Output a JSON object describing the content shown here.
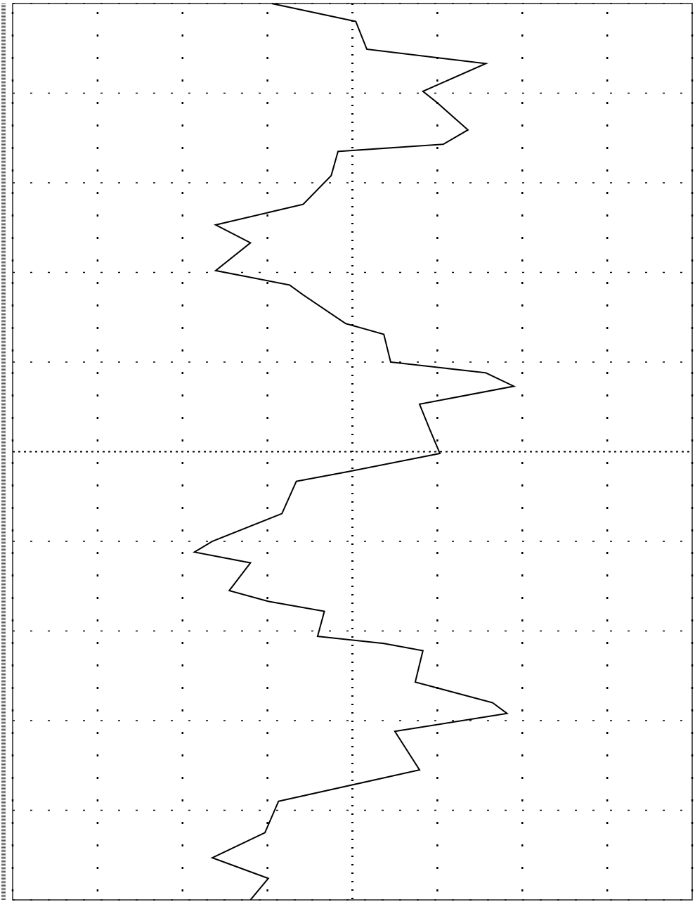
{
  "chart_data": {
    "type": "line",
    "orientation": "vertical",
    "grid": true,
    "color": "#000000",
    "x": [
      0,
      0.2,
      0.51,
      0.67,
      0.98,
      1.1,
      1.41,
      1.57,
      1.65,
      1.92,
      2.24,
      2.47,
      2.67,
      2.98,
      3.14,
      3.25,
      3.57,
      3.69,
      4,
      4.12,
      4.27,
      4.47,
      4.75,
      5.02,
      5.22,
      5.33,
      5.69,
      6,
      6.12,
      6.24,
      6.55,
      6.67,
      6.78,
      7.06,
      7.14,
      7.22,
      7.57,
      7.8,
      7.92,
      8.12,
      8.55,
      8.9,
      9.25,
      9.53,
      9.76,
      10
    ],
    "series": [
      {
        "color": "#000000",
        "values": [
          -0.95,
          0.04,
          0.17,
          1.57,
          0.83,
          0.99,
          1.36,
          1.07,
          -0.17,
          -0.25,
          -0.58,
          -1.61,
          -1.2,
          -1.61,
          -0.74,
          -0.58,
          -0.08,
          0.37,
          0.45,
          1.57,
          1.9,
          0.79,
          0.91,
          1.03,
          -0.04,
          -0.66,
          -0.83,
          -1.65,
          -1.86,
          -1.2,
          -1.45,
          -0.99,
          -0.33,
          -0.41,
          0.37,
          0.83,
          0.74,
          1.65,
          1.82,
          0.5,
          0.79,
          -0.87,
          -1.03,
          -1.65,
          -0.99,
          -1.2
        ]
      }
    ],
    "xlim": [
      0,
      10
    ],
    "xticks": [
      0,
      1,
      2,
      3,
      4,
      5,
      6,
      7,
      8,
      9,
      10
    ],
    "ylim": [
      -4,
      4
    ],
    "yticks": [
      -4,
      -3,
      -2,
      -1,
      0,
      1,
      2,
      3,
      4
    ]
  }
}
